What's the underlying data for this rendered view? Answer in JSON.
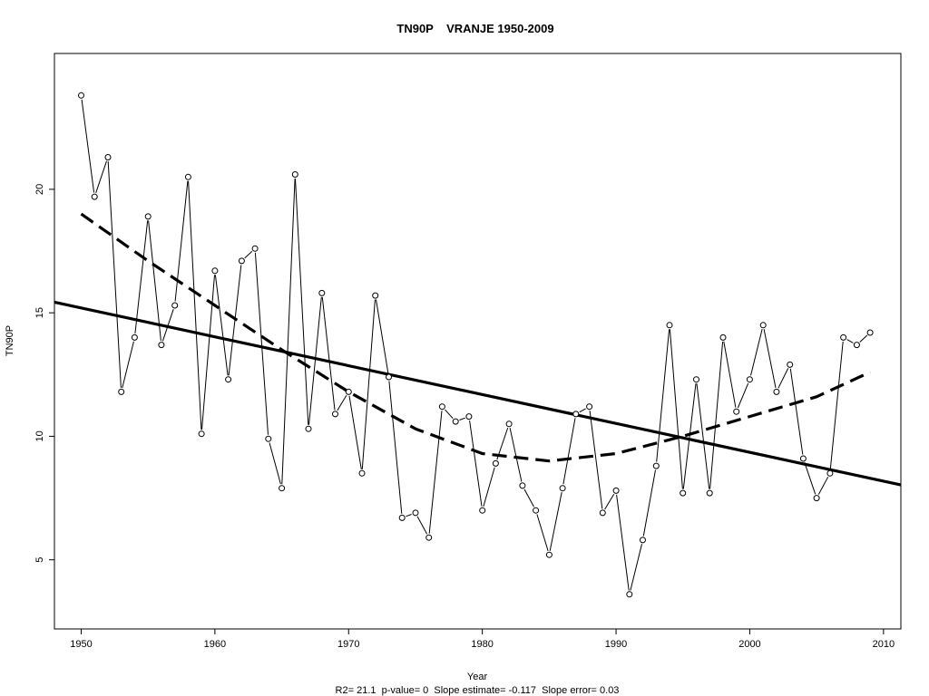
{
  "chart_data": {
    "type": "line",
    "title": "TN90P    VRANJE 1950-2009",
    "xlabel": "Year",
    "ylabel": "TN90P",
    "footer": "R2= 21.1  p-value= 0  Slope estimate= -0.117  Slope error= 0.03",
    "xlim": [
      1948,
      2011.3
    ],
    "ylim": [
      2.2,
      25.5
    ],
    "x_ticks": [
      1950,
      1960,
      1970,
      1980,
      1990,
      2000,
      2010
    ],
    "y_ticks": [
      5,
      10,
      15,
      20
    ],
    "grid": false,
    "series": [
      {
        "style": "line-with-open-points",
        "x": [
          1950,
          1951,
          1952,
          1953,
          1954,
          1955,
          1956,
          1957,
          1958,
          1959,
          1960,
          1961,
          1962,
          1963,
          1964,
          1965,
          1966,
          1967,
          1968,
          1969,
          1970,
          1971,
          1972,
          1973,
          1974,
          1975,
          1976,
          1977,
          1978,
          1979,
          1980,
          1981,
          1982,
          1983,
          1984,
          1985,
          1986,
          1987,
          1988,
          1989,
          1990,
          1991,
          1992,
          1993,
          1994,
          1995,
          1996,
          1997,
          1998,
          1999,
          2000,
          2001,
          2002,
          2003,
          2004,
          2005,
          2006,
          2007,
          2008,
          2009
        ],
        "y": [
          23.8,
          19.7,
          21.3,
          11.8,
          14.0,
          18.9,
          13.7,
          15.3,
          20.5,
          10.1,
          16.7,
          12.3,
          17.1,
          17.6,
          9.9,
          7.9,
          20.6,
          10.3,
          15.8,
          10.9,
          11.8,
          8.5,
          15.7,
          12.4,
          6.7,
          6.9,
          5.9,
          11.2,
          10.6,
          10.8,
          7.0,
          8.9,
          10.5,
          8.0,
          7.0,
          5.2,
          7.9,
          10.9,
          11.2,
          6.9,
          7.8,
          3.6,
          5.8,
          8.8,
          14.5,
          7.7,
          12.3,
          7.7,
          14.0,
          11.0,
          12.3,
          14.5,
          11.8,
          12.9,
          9.1,
          7.5,
          8.5,
          14.0,
          13.7,
          14.2
        ]
      },
      {
        "style": "linear-trend-solid",
        "x": [
          1948,
          2011.3
        ],
        "y": [
          15.43,
          8.03
        ]
      },
      {
        "style": "quadratic-trend-dashed",
        "x": [
          1950,
          1955,
          1960,
          1965,
          1970,
          1975,
          1980,
          1985,
          1990,
          1995,
          2000,
          2005,
          2009
        ],
        "y": [
          19.0,
          17.1,
          15.3,
          13.5,
          11.8,
          10.3,
          9.3,
          9.0,
          9.3,
          10.0,
          10.8,
          11.6,
          12.6
        ]
      }
    ]
  }
}
